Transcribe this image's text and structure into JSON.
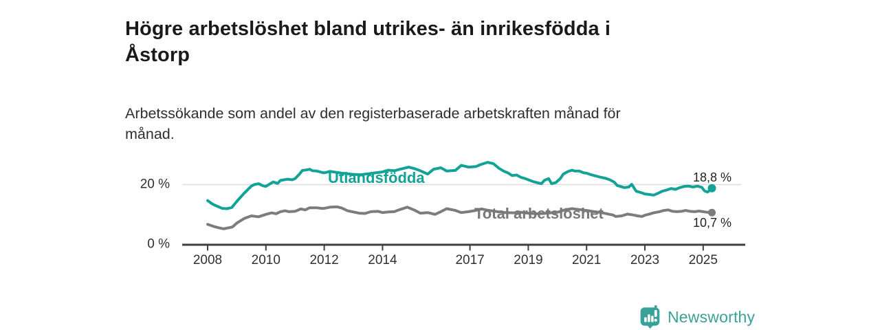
{
  "title": {
    "lines": [
      "Högre arbetslöshet bland utrikes- än inrikesfödda i",
      "Åstorp"
    ]
  },
  "subtitle": {
    "lines": [
      "Arbetssökande som andel av den registerbaserade arbetskraften månad för",
      "månad."
    ]
  },
  "footer": {
    "brand": "Newsworthy",
    "logo_icon": "newsworthy-speech-bubble-chart-icon"
  },
  "colors": {
    "foreign_born_line": "#12a296",
    "total_line": "#7c7c7c",
    "axis": "#3f3f3f",
    "gridline": "#dbdbdb",
    "label_text": "#303030",
    "title_text": "#1a1a1a",
    "brand_teal": "#3aa198"
  },
  "chart_data": {
    "type": "line",
    "title": "Högre arbetslöshet bland utrikes- än inrikesfödda i Åstorp",
    "subtitle": "Arbetssökande som andel av den registerbaserade arbetskraften månad för månad.",
    "ylabel": "",
    "xlabel": "",
    "grid": "y-gridline-at-20-only",
    "legend_position": "inline-on-lines",
    "x_range": [
      2008.0,
      2025.3
    ],
    "y_axis": {
      "range": [
        0,
        29
      ],
      "ticks": [
        {
          "value": 0,
          "label": "0 %"
        },
        {
          "value": 20,
          "label": "20 %"
        }
      ]
    },
    "x_axis": {
      "ticks": [
        2008,
        2010,
        2012,
        2014,
        2017,
        2019,
        2021,
        2023,
        2025
      ]
    },
    "series": [
      {
        "name": "Utlandsfödda",
        "color": "#12a296",
        "end_value": 18.8,
        "end_label": "18,8 %",
        "points": [
          [
            2008.0,
            14.7
          ],
          [
            2008.17,
            13.5
          ],
          [
            2008.33,
            12.8
          ],
          [
            2008.5,
            12.1
          ],
          [
            2008.67,
            12.0
          ],
          [
            2008.83,
            12.4
          ],
          [
            2009.0,
            14.4
          ],
          [
            2009.25,
            17.1
          ],
          [
            2009.5,
            19.5
          ],
          [
            2009.6,
            20.0
          ],
          [
            2009.75,
            20.3
          ],
          [
            2009.9,
            19.6
          ],
          [
            2010.0,
            19.4
          ],
          [
            2010.25,
            20.9
          ],
          [
            2010.4,
            20.4
          ],
          [
            2010.5,
            21.4
          ],
          [
            2010.75,
            21.8
          ],
          [
            2010.9,
            21.6
          ],
          [
            2011.0,
            22.0
          ],
          [
            2011.15,
            23.5
          ],
          [
            2011.25,
            24.7
          ],
          [
            2011.4,
            24.9
          ],
          [
            2011.5,
            25.1
          ],
          [
            2011.6,
            24.6
          ],
          [
            2011.75,
            24.5
          ],
          [
            2011.9,
            24.1
          ],
          [
            2012.0,
            23.9
          ],
          [
            2012.2,
            24.4
          ],
          [
            2012.4,
            24.1
          ],
          [
            2012.6,
            23.8
          ],
          [
            2012.8,
            23.6
          ],
          [
            2013.0,
            23.4
          ],
          [
            2013.25,
            23.3
          ],
          [
            2013.5,
            23.6
          ],
          [
            2013.75,
            23.9
          ],
          [
            2014.0,
            24.2
          ],
          [
            2014.2,
            24.8
          ],
          [
            2014.4,
            24.6
          ],
          [
            2014.6,
            25.1
          ],
          [
            2014.9,
            25.8
          ],
          [
            2015.1,
            25.3
          ],
          [
            2015.3,
            24.6
          ],
          [
            2015.55,
            23.5
          ],
          [
            2015.75,
            25.1
          ],
          [
            2016.0,
            25.6
          ],
          [
            2016.2,
            24.5
          ],
          [
            2016.5,
            24.7
          ],
          [
            2016.7,
            26.4
          ],
          [
            2016.95,
            25.8
          ],
          [
            2017.2,
            26.0
          ],
          [
            2017.35,
            26.6
          ],
          [
            2017.6,
            27.4
          ],
          [
            2017.8,
            27.0
          ],
          [
            2018.0,
            25.4
          ],
          [
            2018.15,
            24.5
          ],
          [
            2018.3,
            23.9
          ],
          [
            2018.45,
            23.0
          ],
          [
            2018.6,
            23.2
          ],
          [
            2018.75,
            22.4
          ],
          [
            2018.9,
            22.0
          ],
          [
            2019.0,
            21.6
          ],
          [
            2019.2,
            20.9
          ],
          [
            2019.45,
            20.3
          ],
          [
            2019.55,
            21.4
          ],
          [
            2019.7,
            22.0
          ],
          [
            2019.8,
            20.3
          ],
          [
            2019.95,
            20.7
          ],
          [
            2020.1,
            22.0
          ],
          [
            2020.2,
            23.5
          ],
          [
            2020.35,
            24.3
          ],
          [
            2020.5,
            24.8
          ],
          [
            2020.6,
            24.5
          ],
          [
            2020.75,
            24.5
          ],
          [
            2020.9,
            23.9
          ],
          [
            2021.0,
            23.8
          ],
          [
            2021.15,
            23.3
          ],
          [
            2021.3,
            22.9
          ],
          [
            2021.5,
            22.4
          ],
          [
            2021.65,
            22.1
          ],
          [
            2021.8,
            21.6
          ],
          [
            2021.95,
            20.8
          ],
          [
            2022.05,
            19.7
          ],
          [
            2022.15,
            19.4
          ],
          [
            2022.3,
            19.0
          ],
          [
            2022.45,
            19.2
          ],
          [
            2022.55,
            20.1
          ],
          [
            2022.7,
            17.8
          ],
          [
            2022.85,
            17.4
          ],
          [
            2023.0,
            16.9
          ],
          [
            2023.15,
            16.7
          ],
          [
            2023.3,
            16.5
          ],
          [
            2023.45,
            17.1
          ],
          [
            2023.6,
            17.8
          ],
          [
            2023.75,
            18.2
          ],
          [
            2023.9,
            18.7
          ],
          [
            2024.05,
            18.4
          ],
          [
            2024.2,
            19.0
          ],
          [
            2024.35,
            19.4
          ],
          [
            2024.5,
            19.5
          ],
          [
            2024.65,
            19.2
          ],
          [
            2024.8,
            19.5
          ],
          [
            2024.95,
            19.1
          ],
          [
            2025.05,
            17.9
          ],
          [
            2025.15,
            17.5
          ],
          [
            2025.25,
            18.3
          ],
          [
            2025.3,
            18.8
          ]
        ]
      },
      {
        "name": "Total arbetslöshet",
        "color": "#7c7c7c",
        "end_value": 10.7,
        "end_label": "10,7 %",
        "points": [
          [
            2008.0,
            6.8
          ],
          [
            2008.2,
            6.1
          ],
          [
            2008.4,
            5.6
          ],
          [
            2008.55,
            5.3
          ],
          [
            2008.7,
            5.6
          ],
          [
            2008.85,
            5.9
          ],
          [
            2009.0,
            7.2
          ],
          [
            2009.25,
            8.7
          ],
          [
            2009.5,
            9.6
          ],
          [
            2009.75,
            9.3
          ],
          [
            2010.0,
            10.1
          ],
          [
            2010.2,
            10.6
          ],
          [
            2010.35,
            10.3
          ],
          [
            2010.5,
            11.0
          ],
          [
            2010.65,
            11.3
          ],
          [
            2010.8,
            11.0
          ],
          [
            2011.0,
            11.1
          ],
          [
            2011.2,
            11.9
          ],
          [
            2011.35,
            11.6
          ],
          [
            2011.5,
            12.3
          ],
          [
            2011.75,
            12.3
          ],
          [
            2011.9,
            12.1
          ],
          [
            2012.0,
            12.1
          ],
          [
            2012.2,
            12.5
          ],
          [
            2012.45,
            12.6
          ],
          [
            2012.6,
            12.2
          ],
          [
            2012.8,
            11.3
          ],
          [
            2013.0,
            10.9
          ],
          [
            2013.2,
            10.5
          ],
          [
            2013.4,
            10.4
          ],
          [
            2013.6,
            11.0
          ],
          [
            2013.85,
            11.1
          ],
          [
            2014.0,
            10.7
          ],
          [
            2014.2,
            10.9
          ],
          [
            2014.4,
            11.0
          ],
          [
            2014.6,
            11.7
          ],
          [
            2014.85,
            12.5
          ],
          [
            2015.1,
            11.5
          ],
          [
            2015.3,
            10.5
          ],
          [
            2015.55,
            10.7
          ],
          [
            2015.8,
            10.1
          ],
          [
            2016.0,
            11.0
          ],
          [
            2016.2,
            12.0
          ],
          [
            2016.5,
            11.4
          ],
          [
            2016.7,
            10.7
          ],
          [
            2016.95,
            11.0
          ],
          [
            2017.2,
            11.4
          ],
          [
            2017.4,
            11.9
          ],
          [
            2017.6,
            11.5
          ],
          [
            2017.8,
            11.2
          ],
          [
            2018.0,
            10.9
          ],
          [
            2018.25,
            10.7
          ],
          [
            2018.5,
            10.6
          ],
          [
            2018.75,
            10.8
          ],
          [
            2019.0,
            10.5
          ],
          [
            2019.25,
            10.3
          ],
          [
            2019.5,
            10.4
          ],
          [
            2019.75,
            10.6
          ],
          [
            2020.0,
            10.8
          ],
          [
            2020.25,
            11.6
          ],
          [
            2020.5,
            12.0
          ],
          [
            2020.75,
            11.7
          ],
          [
            2021.0,
            11.4
          ],
          [
            2021.25,
            11.0
          ],
          [
            2021.5,
            10.7
          ],
          [
            2021.75,
            10.2
          ],
          [
            2021.9,
            9.9
          ],
          [
            2022.0,
            9.4
          ],
          [
            2022.2,
            9.6
          ],
          [
            2022.4,
            10.2
          ],
          [
            2022.6,
            9.9
          ],
          [
            2022.75,
            9.6
          ],
          [
            2022.9,
            9.4
          ],
          [
            2023.0,
            9.8
          ],
          [
            2023.15,
            10.2
          ],
          [
            2023.3,
            10.6
          ],
          [
            2023.5,
            11.0
          ],
          [
            2023.65,
            11.4
          ],
          [
            2023.8,
            11.6
          ],
          [
            2023.95,
            11.1
          ],
          [
            2024.1,
            11.0
          ],
          [
            2024.25,
            11.1
          ],
          [
            2024.4,
            11.4
          ],
          [
            2024.55,
            11.1
          ],
          [
            2024.7,
            11.0
          ],
          [
            2024.85,
            11.2
          ],
          [
            2025.0,
            11.0
          ],
          [
            2025.15,
            10.8
          ],
          [
            2025.3,
            10.7
          ]
        ]
      }
    ]
  }
}
